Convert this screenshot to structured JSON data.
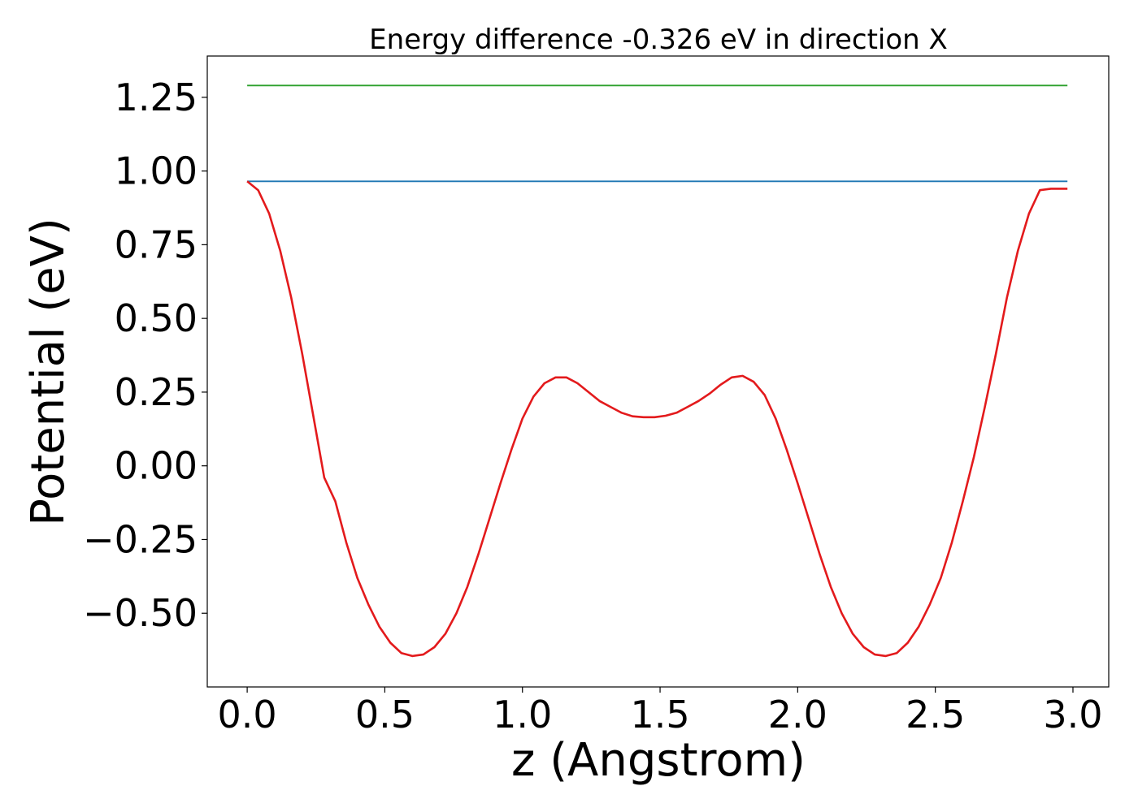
{
  "chart_data": {
    "type": "line",
    "title": "Energy difference -0.326 eV in direction X",
    "xlabel": "z (Angstrom)",
    "ylabel": "Potential (eV)",
    "xlim": [
      -0.145,
      3.13
    ],
    "ylim": [
      -0.75,
      1.39
    ],
    "xticks": [
      0.0,
      0.5,
      1.0,
      1.5,
      2.0,
      2.5,
      3.0
    ],
    "xtick_labels": [
      "0.0",
      "0.5",
      "1.0",
      "1.5",
      "2.0",
      "2.5",
      "3.0"
    ],
    "yticks": [
      -0.5,
      -0.25,
      0.0,
      0.25,
      0.5,
      0.75,
      1.0,
      1.25
    ],
    "ytick_labels": [
      "−0.50",
      "−0.25",
      "0.00",
      "0.25",
      "0.50",
      "0.75",
      "1.00",
      "1.25"
    ],
    "grid": false,
    "series": [
      {
        "color": "#2ca02c",
        "x": [
          0.0,
          2.98
        ],
        "y": [
          1.29,
          1.29
        ]
      },
      {
        "color": "#1f77b4",
        "x": [
          0.0,
          2.98
        ],
        "y": [
          0.965,
          0.965
        ]
      },
      {
        "color": "#e31a1c",
        "x": [
          0.0,
          0.04,
          0.08,
          0.12,
          0.16,
          0.2,
          0.24,
          0.28,
          0.32,
          0.36,
          0.4,
          0.44,
          0.48,
          0.52,
          0.56,
          0.6,
          0.64,
          0.68,
          0.72,
          0.76,
          0.8,
          0.84,
          0.88,
          0.92,
          0.96,
          1.0,
          1.04,
          1.08,
          1.12,
          1.16,
          1.2,
          1.24,
          1.28,
          1.32,
          1.36,
          1.4,
          1.44,
          1.48,
          1.52,
          1.56,
          1.6,
          1.64,
          1.68,
          1.72,
          1.76,
          1.8,
          1.84,
          1.88,
          1.92,
          1.96,
          2.0,
          2.04,
          2.08,
          2.12,
          2.16,
          2.2,
          2.24,
          2.28,
          2.32,
          2.36,
          2.4,
          2.44,
          2.48,
          2.52,
          2.56,
          2.6,
          2.64,
          2.68,
          2.72,
          2.76,
          2.8,
          2.84,
          2.88,
          2.92,
          2.96,
          2.98
        ],
        "y": [
          0.965,
          0.935,
          0.855,
          0.73,
          0.57,
          0.38,
          0.17,
          -0.04,
          -0.12,
          -0.26,
          -0.38,
          -0.47,
          -0.545,
          -0.6,
          -0.635,
          -0.645,
          -0.64,
          -0.615,
          -0.57,
          -0.5,
          -0.41,
          -0.3,
          -0.18,
          -0.06,
          0.055,
          0.16,
          0.235,
          0.28,
          0.3,
          0.3,
          0.28,
          0.25,
          0.22,
          0.2,
          0.18,
          0.168,
          0.165,
          0.165,
          0.17,
          0.18,
          0.2,
          0.22,
          0.245,
          0.275,
          0.3,
          0.305,
          0.285,
          0.24,
          0.16,
          0.055,
          -0.06,
          -0.18,
          -0.3,
          -0.41,
          -0.5,
          -0.57,
          -0.615,
          -0.64,
          -0.645,
          -0.635,
          -0.6,
          -0.545,
          -0.47,
          -0.38,
          -0.26,
          -0.12,
          0.03,
          0.2,
          0.38,
          0.57,
          0.73,
          0.855,
          0.935,
          0.94,
          0.94,
          0.94
        ]
      }
    ]
  }
}
